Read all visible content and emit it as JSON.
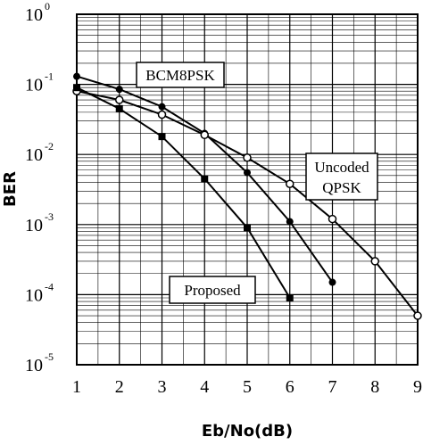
{
  "chart_data": {
    "type": "line",
    "xlabel": "Eb/No(dB)",
    "ylabel": "BER",
    "x_ticks": [
      "1",
      "2",
      "3",
      "4",
      "5",
      "6",
      "7",
      "8",
      "9"
    ],
    "y_ticks": [
      {
        "base": "10",
        "exp": "0"
      },
      {
        "base": "10",
        "exp": "-1"
      },
      {
        "base": "10",
        "exp": "-2"
      },
      {
        "base": "10",
        "exp": "-3"
      },
      {
        "base": "10",
        "exp": "-4"
      },
      {
        "base": "10",
        "exp": "-5"
      }
    ],
    "xlim": [
      1,
      9
    ],
    "ylim": [
      1e-05,
      1
    ],
    "yscale": "log",
    "grid": true,
    "series": [
      {
        "name": "BCM8PSK",
        "marker": "filled-circle",
        "x": [
          1,
          2,
          3,
          4,
          5,
          6,
          7
        ],
        "y": [
          0.13,
          0.085,
          0.048,
          0.02,
          0.0055,
          0.0011,
          0.00015
        ]
      },
      {
        "name": "Uncoded QPSK",
        "marker": "open-circle",
        "x": [
          1,
          2,
          3,
          4,
          5,
          6,
          7,
          8,
          9
        ],
        "y": [
          0.08,
          0.06,
          0.037,
          0.019,
          0.009,
          0.0038,
          0.0012,
          0.0003,
          5e-05
        ]
      },
      {
        "name": "Proposed",
        "marker": "filled-square",
        "x": [
          1,
          2,
          3,
          4,
          5,
          6
        ],
        "y": [
          0.09,
          0.045,
          0.018,
          0.0045,
          0.0009,
          9e-05
        ]
      }
    ],
    "annotations": [
      {
        "id": "bcm",
        "lines": [
          "BCM8PSK"
        ]
      },
      {
        "id": "qpsk",
        "lines": [
          "Uncoded",
          "QPSK"
        ]
      },
      {
        "id": "proposed",
        "lines": [
          "Proposed"
        ]
      }
    ]
  }
}
